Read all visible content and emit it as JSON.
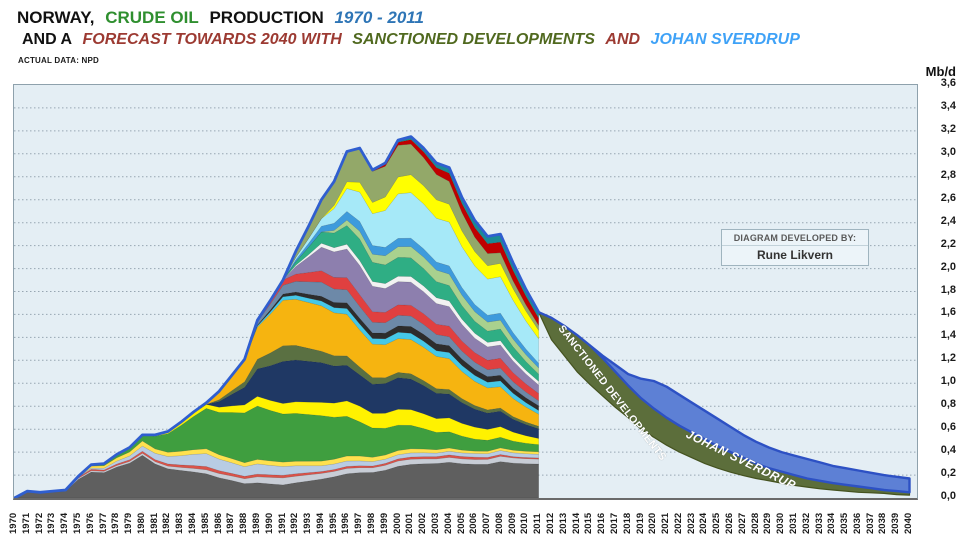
{
  "header": {
    "line1": {
      "norway": "NORWAY,",
      "crude_oil": "CRUDE OIL",
      "production": "PRODUCTION",
      "years": "1970 - 2011"
    },
    "line2": {
      "and_a": "AND A",
      "forecast": "FORECAST TOWARDS 2040 WITH",
      "sanctioned": "SANCTIONED DEVELOPMENTS",
      "and2": "AND",
      "sverdrup": "JOHAN SVERDRUP"
    },
    "source": "ACTUAL DATA: NPD",
    "unit": "Mb/d"
  },
  "credit_box": {
    "label": "DIAGRAM DEVELOPED BY:",
    "name": "Rune Likvern"
  },
  "colors": {
    "title_green": "#2f8f2f",
    "title_blue": "#2e75b6",
    "title_maroon": "#9c3a32",
    "title_darkgreen": "#50691f",
    "title_lightblue": "#3fa2f7",
    "plot_bg": "#e4eef4",
    "gridline": "#97a6b2",
    "history_outline": "#2f5ecf"
  },
  "chart_data": {
    "type": "area",
    "title": "NORWAY, CRUDE OIL PRODUCTION 1970 - 2011 AND A FORECAST TOWARDS 2040 WITH SANCTIONED DEVELOPMENTS AND JOHAN SVERDRUP",
    "ylabel": "Mb/d",
    "source": "ACTUAL DATA: NPD",
    "ylim": [
      0,
      3.6
    ],
    "grid": true,
    "y_axis": {
      "tick_step": 0.2,
      "tick_labels": [
        "0,0",
        "0,2",
        "0,4",
        "0,6",
        "0,8",
        "1,0",
        "1,2",
        "1,4",
        "1,6",
        "1,8",
        "2,0",
        "2,2",
        "2,4",
        "2,6",
        "2,8",
        "3,0",
        "3,2",
        "3,4",
        "3,6"
      ]
    },
    "x_years": [
      1970,
      1971,
      1972,
      1973,
      1974,
      1975,
      1976,
      1977,
      1978,
      1979,
      1980,
      1981,
      1982,
      1983,
      1984,
      1985,
      1986,
      1987,
      1988,
      1989,
      1990,
      1991,
      1992,
      1993,
      1994,
      1995,
      1996,
      1997,
      1998,
      1999,
      2000,
      2001,
      2002,
      2003,
      2004,
      2005,
      2006,
      2007,
      2008,
      2009,
      2010,
      2011,
      2012,
      2013,
      2014,
      2015,
      2016,
      2017,
      2018,
      2019,
      2020,
      2021,
      2022,
      2023,
      2024,
      2025,
      2026,
      2027,
      2028,
      2029,
      2030,
      2031,
      2032,
      2033,
      2034,
      2035,
      2036,
      2037,
      2038,
      2039,
      2040
    ],
    "history": {
      "years_range": [
        1970,
        2011
      ],
      "total_mbd": [
        0.0,
        0.06,
        0.05,
        0.06,
        0.07,
        0.19,
        0.29,
        0.3,
        0.38,
        0.44,
        0.55,
        0.55,
        0.58,
        0.66,
        0.75,
        0.83,
        0.93,
        1.07,
        1.21,
        1.55,
        1.72,
        1.9,
        2.15,
        2.37,
        2.6,
        2.76,
        3.02,
        3.05,
        2.86,
        2.92,
        3.12,
        3.15,
        3.05,
        2.92,
        2.88,
        2.62,
        2.42,
        2.28,
        2.3,
        2.05,
        1.82,
        1.62
      ],
      "keyframe_years": [
        1970,
        1975,
        1980,
        1985,
        1988,
        1991,
        1994,
        1997,
        2000,
        2003,
        2006,
        2009,
        2011
      ],
      "layers": [
        {
          "name": "dark-gray-base",
          "color": "#5f5f5f",
          "w": [
            0.02,
            0.18,
            0.42,
            0.3,
            0.18,
            0.15,
            0.2,
            0.26,
            0.3,
            0.3,
            0.28,
            0.27,
            0.28
          ]
        },
        {
          "name": "silver-band",
          "color": "#c8cdd6",
          "w": [
            0.0,
            0.01,
            0.02,
            0.05,
            0.06,
            0.08,
            0.06,
            0.05,
            0.05,
            0.04,
            0.04,
            0.04,
            0.04
          ]
        },
        {
          "name": "red-sliver",
          "color": "#d9534a",
          "w": [
            0.0,
            0.01,
            0.02,
            0.04,
            0.03,
            0.03,
            0.02,
            0.02,
            0.02,
            0.02,
            0.02,
            0.01,
            0.01
          ]
        },
        {
          "name": "pale-blue-band",
          "color": "#b8cce4",
          "w": [
            0.0,
            0.0,
            0.05,
            0.16,
            0.12,
            0.1,
            0.06,
            0.05,
            0.04,
            0.03,
            0.03,
            0.03,
            0.03
          ]
        },
        {
          "name": "soft-yellow-band",
          "color": "#ffe14f",
          "w": [
            0.0,
            0.01,
            0.05,
            0.06,
            0.05,
            0.05,
            0.05,
            0.05,
            0.04,
            0.03,
            0.02,
            0.02,
            0.02
          ]
        },
        {
          "name": "green-band",
          "color": "#3f9e3f",
          "w": [
            0.0,
            0.0,
            0.06,
            0.5,
            0.62,
            0.55,
            0.48,
            0.35,
            0.24,
            0.15,
            0.1,
            0.07,
            0.06
          ]
        },
        {
          "name": "yellow-band",
          "color": "#fff200",
          "w": [
            0.0,
            0.0,
            0.0,
            0.05,
            0.1,
            0.12,
            0.14,
            0.16,
            0.15,
            0.12,
            0.1,
            0.07,
            0.05
          ]
        },
        {
          "name": "navy-band",
          "color": "#1f3864",
          "w": [
            0.0,
            0.0,
            0.0,
            0.0,
            0.22,
            0.48,
            0.42,
            0.32,
            0.3,
            0.22,
            0.15,
            0.1,
            0.08
          ]
        },
        {
          "name": "olive-sliver",
          "color": "#5a7042",
          "w": [
            0.0,
            0.0,
            0.0,
            0.0,
            0.07,
            0.18,
            0.12,
            0.08,
            0.05,
            0.04,
            0.03,
            0.02,
            0.02
          ]
        },
        {
          "name": "amber-band",
          "color": "#f6b410",
          "w": [
            0.0,
            0.0,
            0.0,
            0.02,
            0.28,
            0.52,
            0.48,
            0.38,
            0.32,
            0.28,
            0.2,
            0.14,
            0.1
          ]
        },
        {
          "name": "cyan-sliver",
          "color": "#45c8e8",
          "w": [
            0.0,
            0.0,
            0.0,
            0.0,
            0.0,
            0.04,
            0.05,
            0.06,
            0.06,
            0.05,
            0.05,
            0.04,
            0.03
          ]
        },
        {
          "name": "charcoal-sliver",
          "color": "#2d2d2d",
          "w": [
            0.0,
            0.0,
            0.0,
            0.0,
            0.0,
            0.03,
            0.05,
            0.06,
            0.06,
            0.06,
            0.05,
            0.04,
            0.04
          ]
        },
        {
          "name": "slate-blue-band",
          "color": "#6d89a8",
          "w": [
            0.0,
            0.0,
            0.0,
            0.0,
            0.0,
            0.1,
            0.15,
            0.12,
            0.1,
            0.08,
            0.06,
            0.05,
            0.04
          ]
        },
        {
          "name": "crimson-band",
          "color": "#e04040",
          "w": [
            0.0,
            0.0,
            0.0,
            0.0,
            0.0,
            0.06,
            0.12,
            0.12,
            0.1,
            0.09,
            0.08,
            0.07,
            0.06
          ]
        },
        {
          "name": "mauve-band",
          "color": "#8d7fae",
          "w": [
            0.0,
            0.0,
            0.0,
            0.0,
            0.0,
            0.0,
            0.25,
            0.3,
            0.22,
            0.18,
            0.12,
            0.09,
            0.07
          ]
        },
        {
          "name": "white-sliver",
          "color": "#f2f2f2",
          "w": [
            0.0,
            0.0,
            0.0,
            0.0,
            0.0,
            0.0,
            0.04,
            0.05,
            0.05,
            0.05,
            0.04,
            0.03,
            0.03
          ]
        },
        {
          "name": "sea-green-band",
          "color": "#2fae84",
          "w": [
            0.0,
            0.0,
            0.0,
            0.0,
            0.0,
            0.0,
            0.12,
            0.22,
            0.18,
            0.14,
            0.1,
            0.08,
            0.06
          ]
        },
        {
          "name": "light-green-band",
          "color": "#a9d18e",
          "w": [
            0.0,
            0.0,
            0.0,
            0.0,
            0.0,
            0.0,
            0.0,
            0.08,
            0.1,
            0.1,
            0.08,
            0.06,
            0.05
          ]
        },
        {
          "name": "sky-blue-sliver",
          "color": "#3e9bdc",
          "w": [
            0.0,
            0.0,
            0.0,
            0.0,
            0.0,
            0.0,
            0.06,
            0.1,
            0.08,
            0.07,
            0.06,
            0.05,
            0.04
          ]
        },
        {
          "name": "light-cyan-band",
          "color": "#a6e9f8",
          "w": [
            0.0,
            0.0,
            0.0,
            0.0,
            0.0,
            0.0,
            0.08,
            0.3,
            0.42,
            0.38,
            0.32,
            0.25,
            0.2
          ]
        },
        {
          "name": "bright-yellow",
          "color": "#ffff00",
          "w": [
            0.0,
            0.0,
            0.0,
            0.0,
            0.0,
            0.0,
            0.0,
            0.1,
            0.16,
            0.16,
            0.12,
            0.09,
            0.07
          ]
        },
        {
          "name": "sage-green-band",
          "color": "#93a869",
          "w": [
            0.0,
            0.0,
            0.0,
            0.0,
            0.0,
            0.0,
            0.2,
            0.35,
            0.3,
            0.22,
            0.12,
            0.06,
            0.04
          ]
        },
        {
          "name": "dark-red-sliver",
          "color": "#c00000",
          "w": [
            0.0,
            0.0,
            0.0,
            0.0,
            0.0,
            0.0,
            0.0,
            0.0,
            0.03,
            0.06,
            0.08,
            0.08,
            0.06
          ]
        },
        {
          "name": "teal-sliver",
          "color": "#1a8a94",
          "w": [
            0.0,
            0.0,
            0.0,
            0.0,
            0.0,
            0.0,
            0.0,
            0.0,
            0.02,
            0.04,
            0.06,
            0.06,
            0.05
          ]
        }
      ],
      "outline_color": "#2f5ecf"
    },
    "forecast": {
      "years_range": [
        2011,
        2040
      ],
      "bands": [
        {
          "name": "sanctioned-developments",
          "label": "SANCTIONED DEVELOPMENTS",
          "fill": "#5c6e3b",
          "stroke": "#44521f",
          "top": [
            1.62,
            1.57,
            1.5,
            1.42,
            1.33,
            1.22,
            1.1,
            0.98,
            0.87,
            0.78,
            0.7,
            0.63,
            0.57,
            0.51,
            0.45,
            0.4,
            0.35,
            0.3,
            0.26,
            0.23,
            0.2,
            0.17,
            0.15,
            0.13,
            0.115,
            0.1,
            0.085,
            0.07,
            0.06,
            0.05
          ],
          "bottom": [
            1.62,
            1.38,
            1.24,
            1.1,
            0.99,
            0.89,
            0.79,
            0.7,
            0.6,
            0.53,
            0.46,
            0.4,
            0.35,
            0.3,
            0.26,
            0.225,
            0.195,
            0.17,
            0.15,
            0.13,
            0.11,
            0.095,
            0.08,
            0.07,
            0.06,
            0.05,
            0.045,
            0.04,
            0.03,
            0.025
          ]
        },
        {
          "name": "johan-sverdrup",
          "label": "JOHAN SVERDRUP",
          "fill": "#5d80d5",
          "stroke": "#2d51c4",
          "top": [
            1.62,
            1.57,
            1.5,
            1.42,
            1.33,
            1.24,
            1.16,
            1.08,
            1.04,
            1.02,
            0.97,
            0.9,
            0.83,
            0.76,
            0.69,
            0.62,
            0.55,
            0.49,
            0.44,
            0.4,
            0.37,
            0.34,
            0.31,
            0.28,
            0.26,
            0.24,
            0.22,
            0.2,
            0.185,
            0.17
          ],
          "bottom_ref": "previous_top"
        }
      ]
    }
  }
}
